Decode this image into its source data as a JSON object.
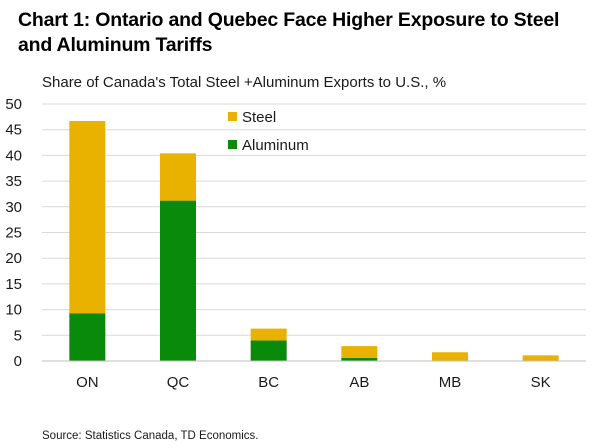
{
  "title": "Chart 1: Ontario and Quebec Face Higher Exposure to Steel and Aluminum Tariffs",
  "source": "Source: Statistics Canada, TD Economics.",
  "colors": {
    "steel": "#e9b200",
    "aluminum": "#0a8a0a",
    "grid": "#d9d9d9"
  },
  "chart_data": {
    "type": "bar",
    "stacked": true,
    "title": "Chart 1: Ontario and Quebec Face Higher Exposure to Steel and Aluminum Tariffs",
    "subtitle": "Share of Canada's Total Steel +Aluminum Exports to U.S., %",
    "categories": [
      "ON",
      "QC",
      "BC",
      "AB",
      "MB",
      "SK"
    ],
    "series": [
      {
        "name": "Aluminum",
        "values": [
          9.3,
          31.2,
          4.0,
          0.6,
          0.1,
          0.1
        ]
      },
      {
        "name": "Steel",
        "values": [
          37.4,
          9.2,
          2.3,
          2.3,
          1.6,
          1.0
        ]
      }
    ],
    "legend_order": [
      "Steel",
      "Aluminum"
    ],
    "legend_position": "top-center",
    "ylim": [
      0,
      50
    ],
    "yticks": [
      "0",
      "5",
      "10",
      "15",
      "20",
      "25",
      "30",
      "35",
      "40",
      "45",
      "50"
    ],
    "grid": true,
    "xlabel": "",
    "ylabel": ""
  }
}
